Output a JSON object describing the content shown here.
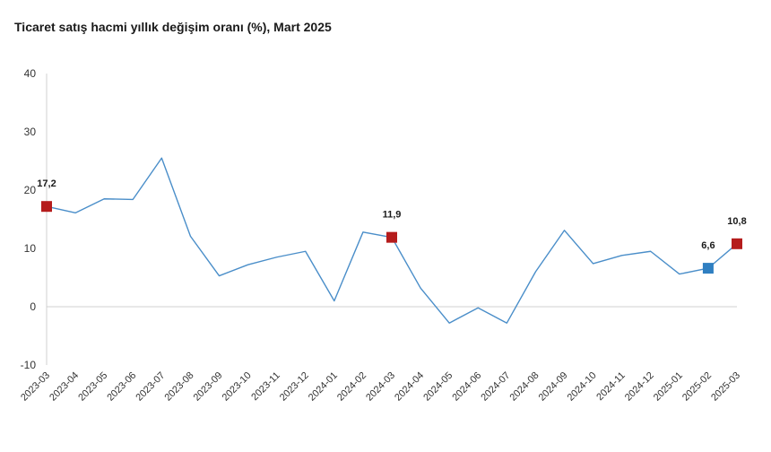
{
  "chart_data": {
    "type": "line",
    "title": "Ticaret satış hacmi yıllık değişim oranı (%), Mart 2025",
    "xlabel": "",
    "ylabel": "",
    "ylim": [
      -10,
      40
    ],
    "yticks": [
      "40",
      "30",
      "20",
      "10",
      "0",
      "-10"
    ],
    "ytick_values": [
      40,
      30,
      20,
      10,
      0,
      -10
    ],
    "grid": false,
    "x": [
      "2023-03",
      "2023-04",
      "2023-05",
      "2023-06",
      "2023-07",
      "2023-08",
      "2023-09",
      "2023-10",
      "2023-11",
      "2023-12",
      "2024-01",
      "2024-02",
      "2024-03",
      "2024-04",
      "2024-05",
      "2024-06",
      "2024-07",
      "2024-08",
      "2024-09",
      "2024-10",
      "2024-11",
      "2024-12",
      "2025-01",
      "2025-02",
      "2025-03"
    ],
    "series": [
      {
        "values": [
          17.2,
          16.1,
          18.5,
          18.4,
          25.5,
          12.1,
          5.3,
          7.2,
          8.5,
          9.5,
          1.0,
          12.8,
          11.9,
          3.2,
          -2.8,
          -0.2,
          -2.8,
          6.0,
          13.1,
          7.4,
          8.8,
          9.5,
          5.6,
          6.6,
          10.8
        ],
        "color": "#4a8ec9"
      }
    ],
    "highlights": [
      {
        "index": 0,
        "label": "17,2",
        "color": "#b51c1c"
      },
      {
        "index": 12,
        "label": "11,9",
        "color": "#b51c1c"
      },
      {
        "index": 23,
        "label": "6,6",
        "color": "#2f7fc1"
      },
      {
        "index": 24,
        "label": "10,8",
        "color": "#b51c1c"
      }
    ],
    "axis_color": "#d0d0d0"
  }
}
